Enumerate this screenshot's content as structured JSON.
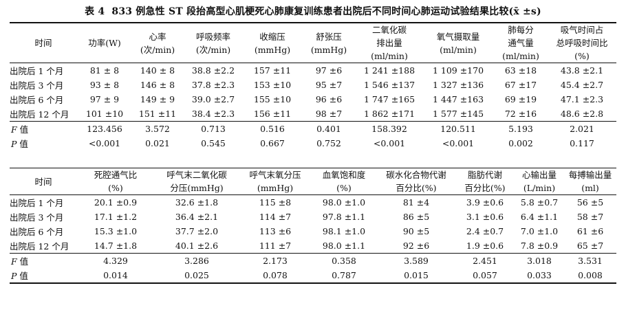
{
  "caption": {
    "label": "表 4",
    "title": "833 例急性 ST 段抬高型心肌梗死心肺康复训练患者出院后不同时间心肺运动试验结果比较(x̄ ±s)"
  },
  "table1": {
    "headers": [
      [
        "时间"
      ],
      [
        "功率(W)"
      ],
      [
        "心率",
        "(次/min)"
      ],
      [
        "呼吸频率",
        "(次/min)"
      ],
      [
        "收缩压",
        "(mmHg)"
      ],
      [
        "舒张压",
        "(mmHg)"
      ],
      [
        "二氧化碳",
        "排出量",
        "(ml/min)"
      ],
      [
        "氧气摄取量",
        "(ml/min)"
      ],
      [
        "肺每分",
        "通气量",
        "(ml/min)"
      ],
      [
        "吸气时间占",
        "总呼吸时间比",
        "(%)"
      ]
    ],
    "rows": [
      [
        "出院后 1 个月",
        "81 ± 8",
        "140 ± 8",
        "38.8 ±2.2",
        "157 ±11",
        "97 ±6",
        "1 241 ±188",
        "1 109 ±170",
        "63 ±18",
        "43.8 ±2.1"
      ],
      [
        "出院后 3 个月",
        "93 ± 8",
        "146 ± 8",
        "37.8 ±2.3",
        "153 ±10",
        "95 ±7",
        "1 546 ±137",
        "1 327 ±136",
        "67 ±17",
        "45.4 ±2.7"
      ],
      [
        "出院后 6 个月",
        "97 ± 9",
        "149 ± 9",
        "39.0 ±2.7",
        "155 ±10",
        "96 ±6",
        "1 747 ±165",
        "1 447 ±163",
        "69 ±19",
        "47.1 ±2.3"
      ],
      [
        "出院后 12 个月",
        "101 ±10",
        "151 ±11",
        "38.4 ±2.3",
        "156 ±11",
        "98 ±7",
        "1 862 ±171",
        "1 577 ±145",
        "72 ±16",
        "48.6 ±2.8"
      ]
    ],
    "f_label": "F 值",
    "f_values": [
      "123.456",
      "3.572",
      "0.713",
      "0.516",
      "0.401",
      "158.392",
      "120.511",
      "5.193",
      "2.021"
    ],
    "p_label": "P 值",
    "p_values": [
      "<0.001",
      "0.021",
      "0.545",
      "0.667",
      "0.752",
      "<0.001",
      "<0.001",
      "0.002",
      "0.117"
    ]
  },
  "table2": {
    "headers": [
      [
        "时间"
      ],
      [
        "死腔通气比",
        "(%)"
      ],
      [
        "呼气末二氧化碳",
        "分压(mmHg)"
      ],
      [
        "呼气末氧分压",
        "(mmHg)"
      ],
      [
        "血氧饱和度",
        "(%)"
      ],
      [
        "碳水化合物代谢",
        "百分比(%)"
      ],
      [
        "脂肪代谢",
        "百分比(%)"
      ],
      [
        "心输出量",
        "(L/min)"
      ],
      [
        "每搏输出量",
        "(ml)"
      ]
    ],
    "rows": [
      [
        "出院后 1 个月",
        "20.1 ±0.9",
        "32.6 ±1.8",
        "115 ±8",
        "98.0 ±1.0",
        "81 ±4",
        "3.9 ±0.6",
        "5.8 ±0.7",
        "56 ±5"
      ],
      [
        "出院后 3 个月",
        "17.1 ±1.2",
        "36.4 ±2.1",
        "114 ±7",
        "97.8 ±1.1",
        "86 ±5",
        "3.1 ±0.6",
        "6.4 ±1.1",
        "58 ±7"
      ],
      [
        "出院后 6 个月",
        "15.3 ±1.0",
        "37.7 ±2.0",
        "113 ±6",
        "98.1 ±1.0",
        "90 ±5",
        "2.4 ±0.7",
        "7.0 ±1.0",
        "61 ±6"
      ],
      [
        "出院后 12 个月",
        "14.7 ±1.8",
        "40.1 ±2.6",
        "111 ±7",
        "98.0 ±1.1",
        "92 ±6",
        "1.9 ±0.6",
        "7.8 ±0.9",
        "65 ±7"
      ]
    ],
    "f_label": "F 值",
    "f_values": [
      "4.329",
      "3.286",
      "2.173",
      "0.358",
      "3.589",
      "2.451",
      "3.018",
      "3.531"
    ],
    "p_label": "P 值",
    "p_values": [
      "0.014",
      "0.025",
      "0.078",
      "0.787",
      "0.015",
      "0.057",
      "0.033",
      "0.008"
    ]
  }
}
